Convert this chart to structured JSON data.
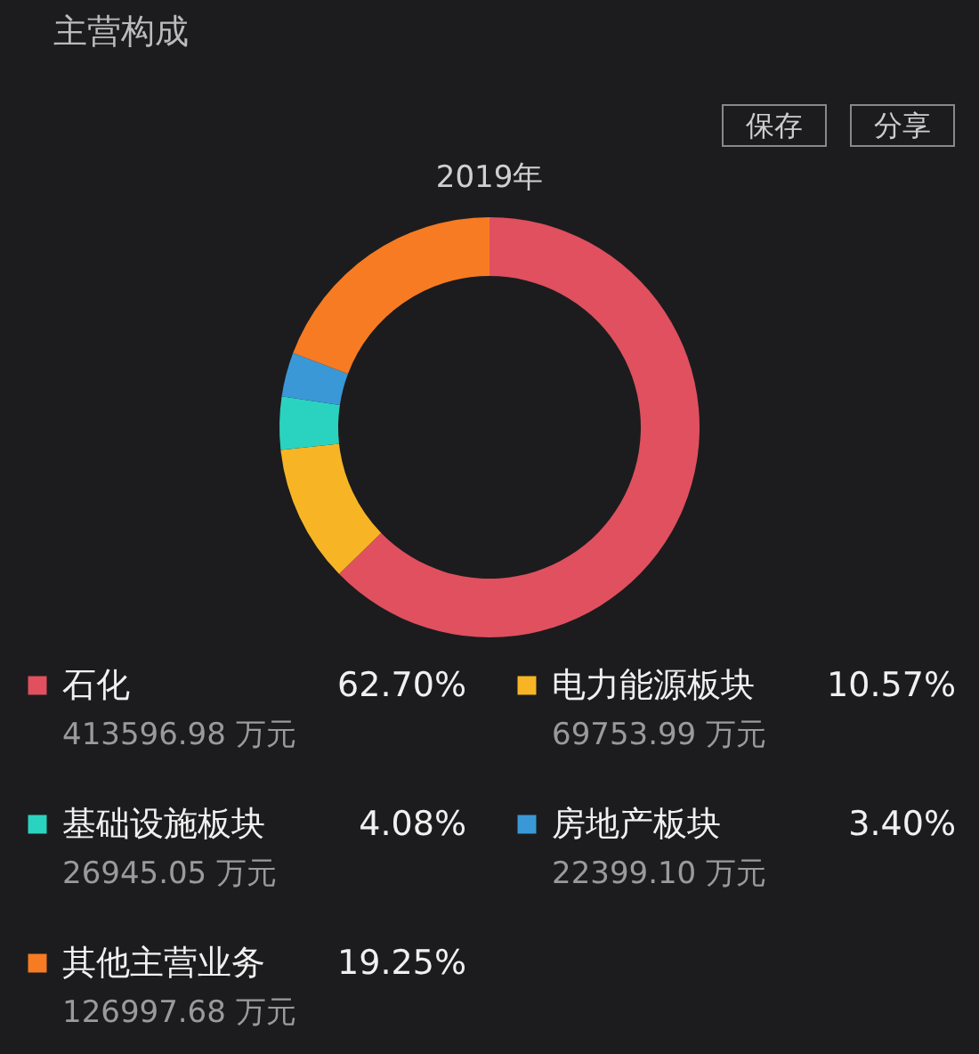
{
  "chart_data": {
    "type": "donut",
    "title": "2019年",
    "categories": [
      "石化",
      "电力能源板块",
      "基础设施板块",
      "房地产板块",
      "其他主营业务"
    ],
    "values": [
      62.7,
      10.57,
      4.08,
      3.4,
      19.25
    ],
    "colors": [
      "#e0505f",
      "#f7b526",
      "#2ad3c0",
      "#3b98d6",
      "#f77b23"
    ],
    "value_labels": [
      "62.70%",
      "10.57%",
      "4.08%",
      "3.40%",
      "19.25%"
    ],
    "annotations": [
      "413596.98 万元",
      "69753.99 万元",
      "26945.05 万元",
      "22399.10 万元",
      "126997.68 万元",
      "主营构成",
      "保存",
      "分享"
    ],
    "legend": "bottom"
  }
}
